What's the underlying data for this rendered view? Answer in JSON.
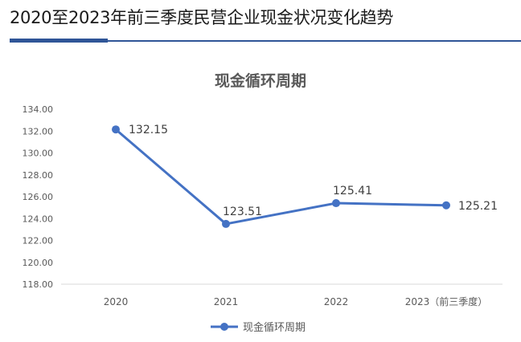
{
  "header": {
    "title": "2020至2023年前三季度民营企业现金状况变化趋势"
  },
  "colors": {
    "accent": "#2f5597",
    "series": "#4472c4",
    "grid": "#d9d9d9",
    "axis_text": "#595959",
    "title_text": "#595959"
  },
  "chart_data": {
    "type": "line",
    "title": "现金循环周期",
    "categories": [
      "2020",
      "2021",
      "2022",
      "2023（前三季度）"
    ],
    "series": [
      {
        "name": "现金循环周期",
        "values": [
          132.15,
          123.51,
          125.41,
          125.21
        ]
      }
    ],
    "data_labels": [
      "132.15",
      "123.51",
      "125.41",
      "125.21"
    ],
    "ylim": [
      118,
      134
    ],
    "yticks": [
      118,
      120,
      122,
      124,
      126,
      128,
      130,
      132,
      134
    ],
    "ytick_labels": [
      "118.00",
      "120.00",
      "122.00",
      "124.00",
      "126.00",
      "128.00",
      "130.00",
      "132.00",
      "134.00"
    ],
    "grid": false,
    "legend": "bottom-center",
    "markers": true
  }
}
